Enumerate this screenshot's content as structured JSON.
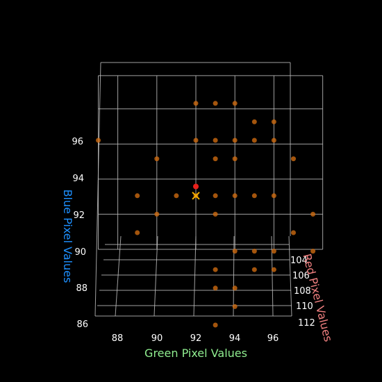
{
  "chart_data": {
    "type": "scatter3d",
    "title": "",
    "axes": {
      "x": {
        "label": "Green Pixel Values",
        "color": "#90ee90",
        "ticks": [
          "88",
          "90",
          "92",
          "94",
          "96"
        ]
      },
      "y": {
        "label": "Red Pixel Values",
        "color": "#f08080",
        "ticks": [
          "104",
          "106",
          "108",
          "110",
          "112"
        ]
      },
      "z": {
        "label": "Blue Pixel Values",
        "color": "#1e90ff",
        "ticks": [
          "86",
          "88",
          "90",
          "92",
          "94",
          "96"
        ]
      }
    },
    "grid": true,
    "background": "#000000",
    "points_color": "#cd6a10",
    "points": [
      {
        "g": 92,
        "r": 108,
        "b": 97
      },
      {
        "g": 93,
        "r": 108,
        "b": 97
      },
      {
        "g": 94,
        "r": 108,
        "b": 97
      },
      {
        "g": 95,
        "r": 108,
        "b": 96
      },
      {
        "g": 96,
        "r": 108,
        "b": 96
      },
      {
        "g": 87,
        "r": 108,
        "b": 95
      },
      {
        "g": 92,
        "r": 108,
        "b": 95
      },
      {
        "g": 93,
        "r": 108,
        "b": 95
      },
      {
        "g": 94,
        "r": 108,
        "b": 95
      },
      {
        "g": 95,
        "r": 108,
        "b": 95
      },
      {
        "g": 96,
        "r": 108,
        "b": 95
      },
      {
        "g": 90,
        "r": 108,
        "b": 94
      },
      {
        "g": 93,
        "r": 108,
        "b": 94
      },
      {
        "g": 94,
        "r": 108,
        "b": 94
      },
      {
        "g": 97,
        "r": 108,
        "b": 94
      },
      {
        "g": 91,
        "r": 108,
        "b": 92
      },
      {
        "g": 89,
        "r": 108,
        "b": 92
      },
      {
        "g": 92,
        "r": 108,
        "b": 92
      },
      {
        "g": 93,
        "r": 108,
        "b": 92
      },
      {
        "g": 94,
        "r": 108,
        "b": 92
      },
      {
        "g": 95,
        "r": 108,
        "b": 92
      },
      {
        "g": 96,
        "r": 108,
        "b": 92
      },
      {
        "g": 90,
        "r": 108,
        "b": 91
      },
      {
        "g": 93,
        "r": 108,
        "b": 91
      },
      {
        "g": 89,
        "r": 108,
        "b": 90
      },
      {
        "g": 97,
        "r": 108,
        "b": 90
      },
      {
        "g": 94,
        "r": 108,
        "b": 89
      },
      {
        "g": 95,
        "r": 108,
        "b": 89
      },
      {
        "g": 96,
        "r": 108,
        "b": 89
      },
      {
        "g": 93,
        "r": 108,
        "b": 88
      },
      {
        "g": 95,
        "r": 108,
        "b": 88
      },
      {
        "g": 96,
        "r": 108,
        "b": 88
      },
      {
        "g": 93,
        "r": 108,
        "b": 87
      },
      {
        "g": 94,
        "r": 108,
        "b": 87
      },
      {
        "g": 94,
        "r": 108,
        "b": 86
      },
      {
        "g": 93,
        "r": 108,
        "b": 85
      },
      {
        "g": 98,
        "r": 108,
        "b": 91
      },
      {
        "g": 98,
        "r": 108,
        "b": 89
      }
    ],
    "markers": [
      {
        "kind": "dot",
        "color": "#e8201b",
        "g": 92,
        "r": 108,
        "b": 92.5
      },
      {
        "kind": "x",
        "color": "#f5b000",
        "g": 92,
        "r": 108,
        "b": 92
      }
    ]
  }
}
